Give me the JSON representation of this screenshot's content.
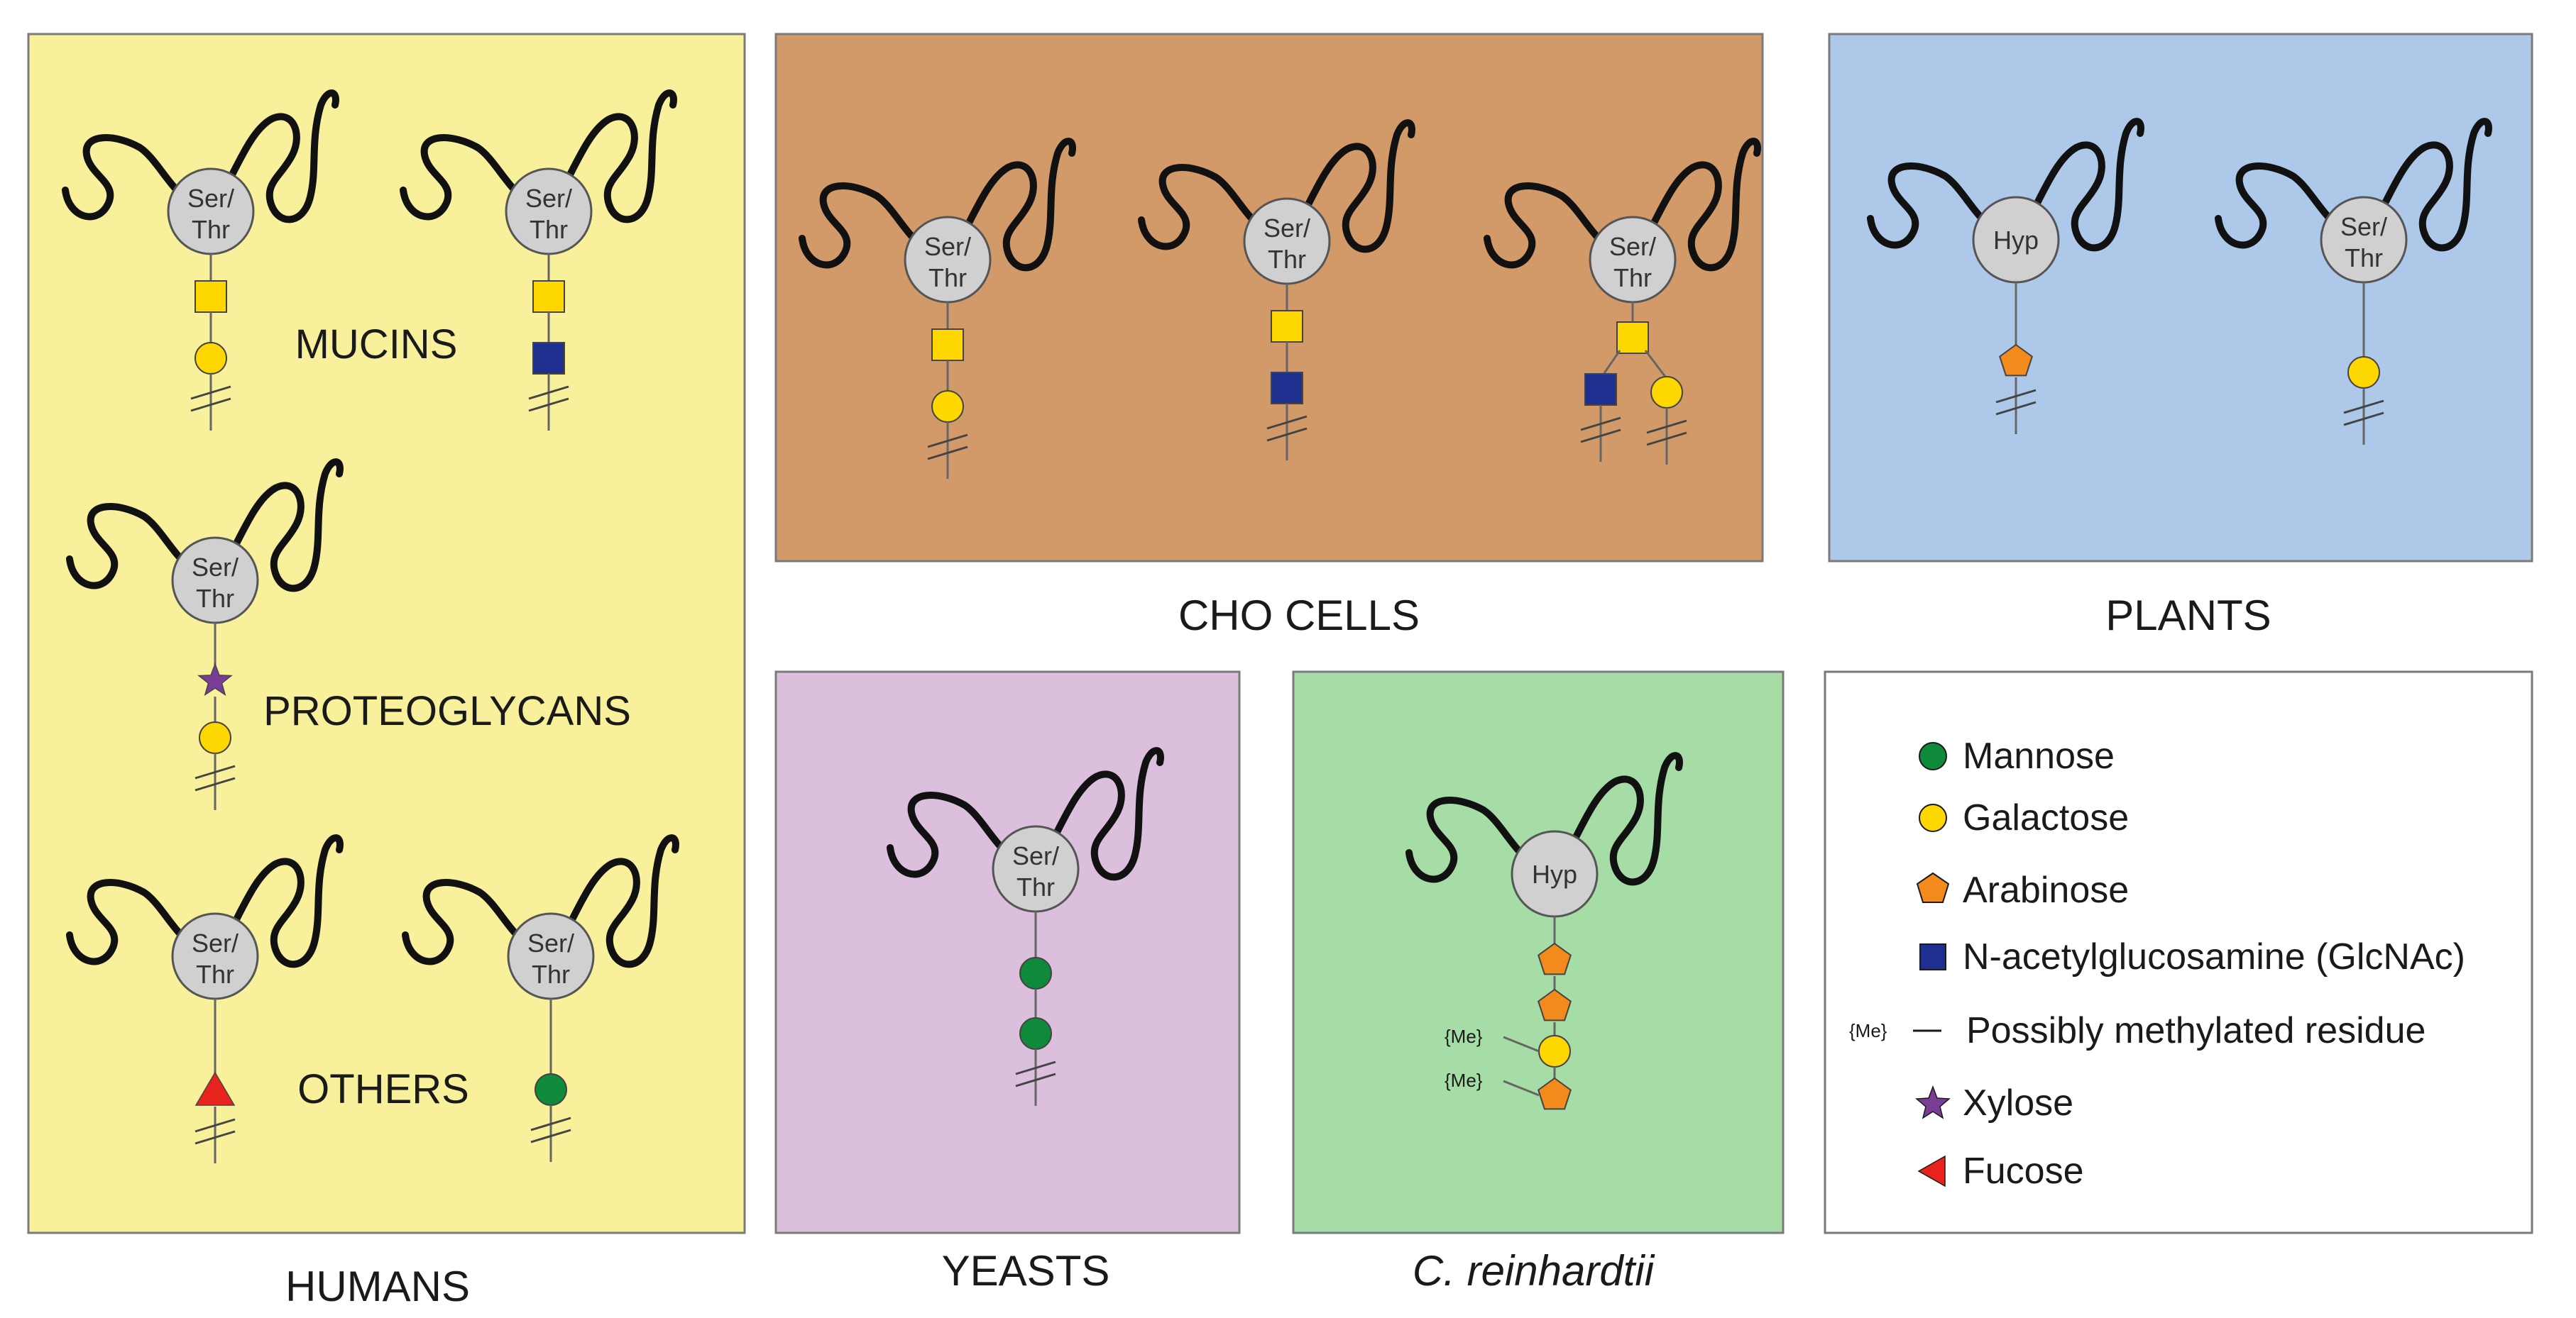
{
  "colors": {
    "humans_bg": "#f8f09a",
    "cho_bg": "#d29a68",
    "plants_bg": "#adc8e8",
    "yeasts_bg": "#dcbfdc",
    "creinhardtii_bg": "#a6dca6",
    "legend_bg": "#ffffff",
    "mannose": "#0f8a3a",
    "galactose": "#ffd700",
    "arabinose": "#f28a1c",
    "glcnac": "#1f2f8f",
    "xylose": "#7a3d96",
    "fucose": "#e8231e",
    "residue_fill": "#d0d0d0"
  },
  "panels": {
    "humans": {
      "label": "HUMANS"
    },
    "cho": {
      "label": "CHO CELLS"
    },
    "plants": {
      "label": "PLANTS"
    },
    "yeasts": {
      "label": "YEASTS"
    },
    "creinhardtii": {
      "label": "C. reinhardtii"
    }
  },
  "group_labels": {
    "mucins": "MUCINS",
    "proteoglycans": "PROTEOGLYCANS",
    "others": "OTHERS"
  },
  "residues": {
    "ser_line1": "Ser/",
    "ser_line2": "Thr",
    "hyp": "Hyp"
  },
  "methyl_tag": "{Me}",
  "legend": {
    "mannose": {
      "label": "Mannose",
      "icon": "green-circle"
    },
    "galactose": {
      "label": "Galactose",
      "icon": "yellow-circle"
    },
    "arabinose": {
      "label": "Arabinose",
      "icon": "orange-pentagon"
    },
    "glcnac": {
      "label": "N-acetylglucosamine (GlcNAc)",
      "icon": "blue-square"
    },
    "methylated": {
      "label": "Possibly methylated residue",
      "tag": "{Me}"
    },
    "xylose": {
      "label": "Xylose",
      "icon": "purple-star"
    },
    "fucose": {
      "label": "Fucose",
      "icon": "red-triangle"
    }
  }
}
